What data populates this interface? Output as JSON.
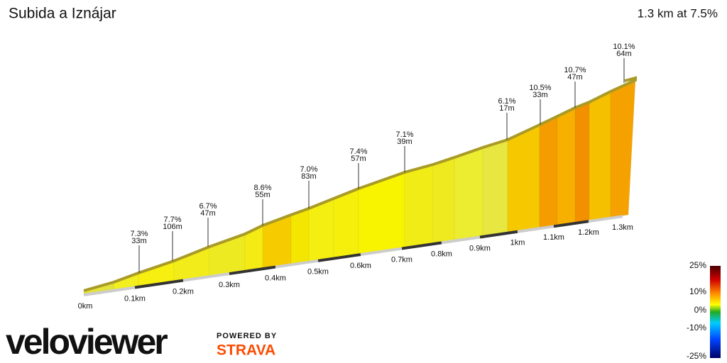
{
  "header": {
    "title": "Subida a Iznájar",
    "summary": "1.3 km at 7.5%"
  },
  "distance_labels": [
    "0km",
    "0.1km",
    "0.2km",
    "0.3km",
    "0.4km",
    "0.5km",
    "0.6km",
    "0.7km",
    "0.8km",
    "0.9km",
    "1km",
    "1.1km",
    "1.2km",
    "1.3km"
  ],
  "segments": [
    {
      "gradient": "7.3%",
      "length": "33m"
    },
    {
      "gradient": "7.7%",
      "length": "106m"
    },
    {
      "gradient": "6.7%",
      "length": "47m"
    },
    {
      "gradient": "8.6%",
      "length": "55m"
    },
    {
      "gradient": "7.0%",
      "length": "83m"
    },
    {
      "gradient": "7.4%",
      "length": "57m"
    },
    {
      "gradient": "7.1%",
      "length": "39m"
    },
    {
      "gradient": "6.1%",
      "length": "17m"
    },
    {
      "gradient": "10.5%",
      "length": "33m"
    },
    {
      "gradient": "10.7%",
      "length": "47m"
    },
    {
      "gradient": "10.1%",
      "length": "64m"
    }
  ],
  "legend": [
    "25%",
    "10%",
    "0%",
    "-10%",
    "-25%"
  ],
  "branding": {
    "logo": "veloviewer",
    "powered_by": "POWERED BY",
    "partner": "STRAVA"
  }
}
